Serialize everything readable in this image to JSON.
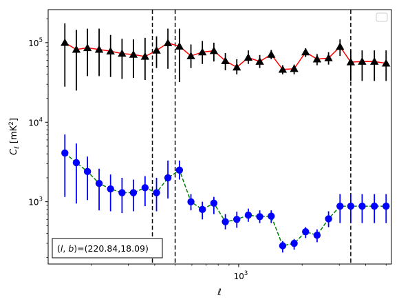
{
  "chart_data": {
    "type": "scatter",
    "xlabel": "ℓ",
    "ylabel": "C",
    "ylabel_sub": "ℓ",
    "ylabel_unit": "[mK",
    "ylabel_unit_sup": "2",
    "ylabel_unit_close": "]",
    "x_scale": "log",
    "y_scale": "log",
    "xlim": [
      125,
      5300
    ],
    "ylim": [
      165,
      260000
    ],
    "x_major_ticks": [
      {
        "value": 1000,
        "base": "10",
        "exp": "3"
      }
    ],
    "y_major_ticks": [
      {
        "value": 1000,
        "base": "10",
        "exp": "3"
      },
      {
        "value": 10000,
        "base": "10",
        "exp": "4"
      },
      {
        "value": 100000,
        "base": "10",
        "exp": "5"
      }
    ],
    "vlines": [
      390,
      500,
      3400
    ],
    "annotation": "(l, b)=(220.84,18.09)",
    "legend": "top-right",
    "legend_entries": [],
    "series": [
      {
        "marker": "triangle",
        "marker_color": "#000000",
        "line_color": "#ff0000",
        "line_style": "solid",
        "errorbar_color": "#000000",
        "x": [
          150,
          170,
          192,
          218,
          247,
          280,
          317,
          360,
          408,
          462,
          524,
          594,
          673,
          763,
          865,
          980,
          1111,
          1259,
          1427,
          1617,
          1833,
          2077,
          2354,
          2668,
          3024,
          3400,
          3850,
          4400,
          5000
        ],
        "y": [
          100000,
          82000,
          86000,
          82000,
          78000,
          73000,
          71000,
          67000,
          80000,
          99000,
          90000,
          68000,
          76000,
          79000,
          59000,
          49000,
          65000,
          58000,
          71000,
          46000,
          47000,
          76000,
          62000,
          64000,
          89000,
          57000,
          58000,
          58000,
          55000
        ],
        "ylow": [
          28000,
          25000,
          38000,
          38000,
          37000,
          35000,
          36000,
          34000,
          48000,
          47000,
          32000,
          48000,
          54000,
          58000,
          45000,
          40000,
          54000,
          48000,
          62000,
          40000,
          40000,
          66000,
          52000,
          53000,
          68000,
          33000,
          33000,
          33000,
          33000
        ],
        "yhigh": [
          175000,
          145000,
          150000,
          150000,
          125000,
          112000,
          110000,
          115000,
          120000,
          150000,
          150000,
          95000,
          105000,
          100000,
          74000,
          62000,
          80000,
          70000,
          81000,
          52000,
          53000,
          85000,
          72000,
          76000,
          110000,
          80000,
          80000,
          80000,
          80000
        ]
      },
      {
        "marker": "circle",
        "marker_color": "#0000ff",
        "line_color": "#008000",
        "line_style": "dashed",
        "errorbar_color": "#0000ff",
        "x": [
          150,
          170,
          192,
          218,
          247,
          280,
          317,
          360,
          408,
          462,
          524,
          594,
          673,
          763,
          865,
          980,
          1111,
          1259,
          1427,
          1617,
          1833,
          2077,
          2354,
          2668,
          3024,
          3400,
          3850,
          4400,
          5000
        ],
        "y": [
          4100,
          3100,
          2400,
          1700,
          1450,
          1300,
          1300,
          1500,
          1300,
          2000,
          2500,
          1000,
          800,
          960,
          560,
          600,
          680,
          650,
          660,
          280,
          300,
          420,
          380,
          610,
          880,
          880,
          880,
          880,
          880
        ],
        "ylow": [
          1150,
          950,
          1050,
          780,
          760,
          720,
          760,
          880,
          760,
          1100,
          1900,
          780,
          600,
          700,
          450,
          470,
          560,
          540,
          540,
          230,
          250,
          350,
          310,
          480,
          540,
          540,
          540,
          540,
          540
        ],
        "yhigh": [
          7000,
          5400,
          3700,
          2600,
          2200,
          2000,
          1900,
          2100,
          2000,
          3300,
          3300,
          1250,
          1000,
          1150,
          700,
          750,
          820,
          780,
          780,
          320,
          340,
          480,
          450,
          760,
          1250,
          1250,
          1250,
          1250,
          1250
        ]
      }
    ]
  }
}
